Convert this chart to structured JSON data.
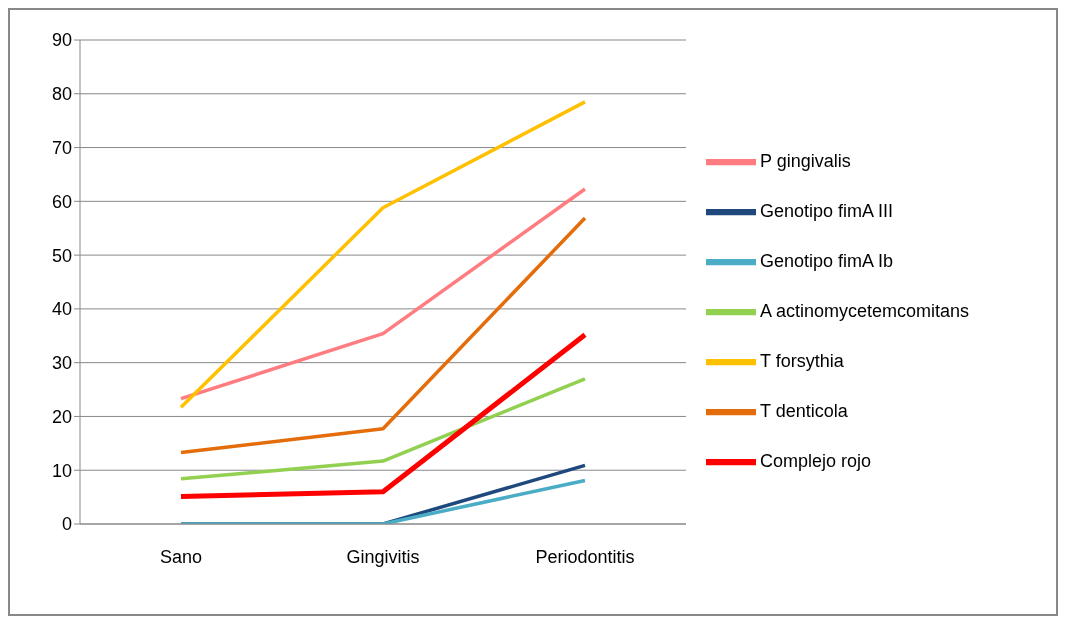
{
  "chart_data": {
    "type": "line",
    "categories": [
      "Sano",
      "Gingivitis",
      "Periodontitis"
    ],
    "ylim": [
      0,
      90
    ],
    "yticks": [
      0,
      10,
      20,
      30,
      40,
      50,
      60,
      70,
      80,
      90
    ],
    "grid": "y",
    "legend": "right",
    "marker": "none",
    "line_style": "solid",
    "series": [
      {
        "name": "P gingivalis",
        "color": "#ff7c80",
        "values": [
          23.3,
          35.4,
          62.3
        ]
      },
      {
        "name": "Genotipo fimA III",
        "color": "#1f497d",
        "values": [
          0,
          0,
          10.9
        ]
      },
      {
        "name": "Genotipo fimA Ib",
        "color": "#4bacc6",
        "values": [
          0,
          0,
          8.1
        ]
      },
      {
        "name": "A actinomycetemcomitans",
        "color": "#92d050",
        "values": [
          8.4,
          11.7,
          27.0
        ]
      },
      {
        "name": "T forsythia",
        "color": "#ffc000",
        "values": [
          21.7,
          58.8,
          78.5
        ]
      },
      {
        "name": "T denticola",
        "color": "#e46c0a",
        "values": [
          13.3,
          17.7,
          56.9
        ]
      },
      {
        "name": "Complejo rojo",
        "color": "#ff0000",
        "values": [
          5.1,
          6.0,
          35.2
        ]
      }
    ]
  }
}
